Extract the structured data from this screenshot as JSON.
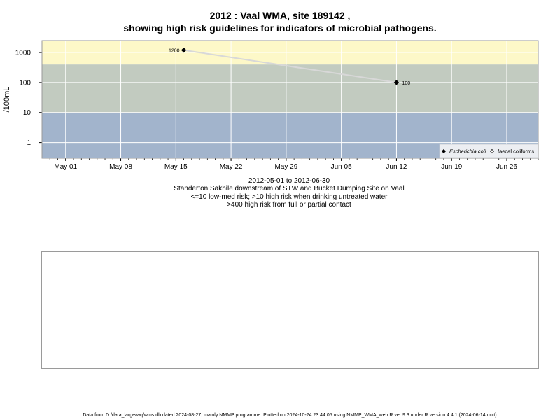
{
  "header": {
    "title_line1": "2012 : Vaal WMA, site 189142 ,",
    "title_line2": "showing high risk guidelines for indicators of microbial pathogens."
  },
  "captions": {
    "date_range": "2012-05-01 to 2012-06-30",
    "site_description": "Standerton Sakhile downstream of STW and Bucket Dumping Site on Vaal",
    "guideline_low": "<=10 low-med risk; >10 high risk when drinking untreated water",
    "guideline_high": ">400 high risk from full or partial contact"
  },
  "footer": {
    "note": "Data from D:/data_large/wq/wms.db dated 2024-08-27, mainly NMMP programme. Plotted on 2024-10-24 23:44:05 using NMMP_WMA_web.R ver 9.3 under R version 4.4.1 (2024-06-14 ucrt)"
  },
  "chart_data": {
    "type": "line",
    "ylabel": "/100mL",
    "xlabel": "",
    "y_scale": "log",
    "ylim": [
      0.3,
      2500
    ],
    "xlim": [
      "2012-04-28",
      "2012-06-30"
    ],
    "x_ticks": [
      "May 01",
      "May 08",
      "May 15",
      "May 22",
      "May 29",
      "Jun 05",
      "Jun 12",
      "Jun 19",
      "Jun 26"
    ],
    "x_tick_dates": [
      "2012-05-01",
      "2012-05-08",
      "2012-05-15",
      "2012-05-22",
      "2012-05-29",
      "2012-06-05",
      "2012-06-12",
      "2012-06-19",
      "2012-06-26"
    ],
    "y_ticks": [
      1,
      10,
      100,
      1000
    ],
    "y_tick_labels": [
      "1",
      "10",
      "100",
      "1000"
    ],
    "grid": true,
    "legend_position": "bottom-right",
    "risk_bands": [
      {
        "from": 0.3,
        "to": 10,
        "color": "#a2b4cc"
      },
      {
        "from": 10,
        "to": 400,
        "color": "#c2cbc0"
      },
      {
        "from": 400,
        "to": 2500,
        "color": "#fdf8c8"
      }
    ],
    "series": [
      {
        "name": "Escherichia coli",
        "marker": "filled-diamond",
        "color": "#000000",
        "line_color": "#d8d8d8",
        "x": [
          "2012-05-16",
          "2012-06-12"
        ],
        "y": [
          1200,
          100
        ],
        "labels": [
          "1200",
          "100"
        ]
      },
      {
        "name": "faecal coliforms",
        "marker": "open-diamond",
        "color": "#000000",
        "x": [],
        "y": [],
        "labels": []
      }
    ]
  }
}
